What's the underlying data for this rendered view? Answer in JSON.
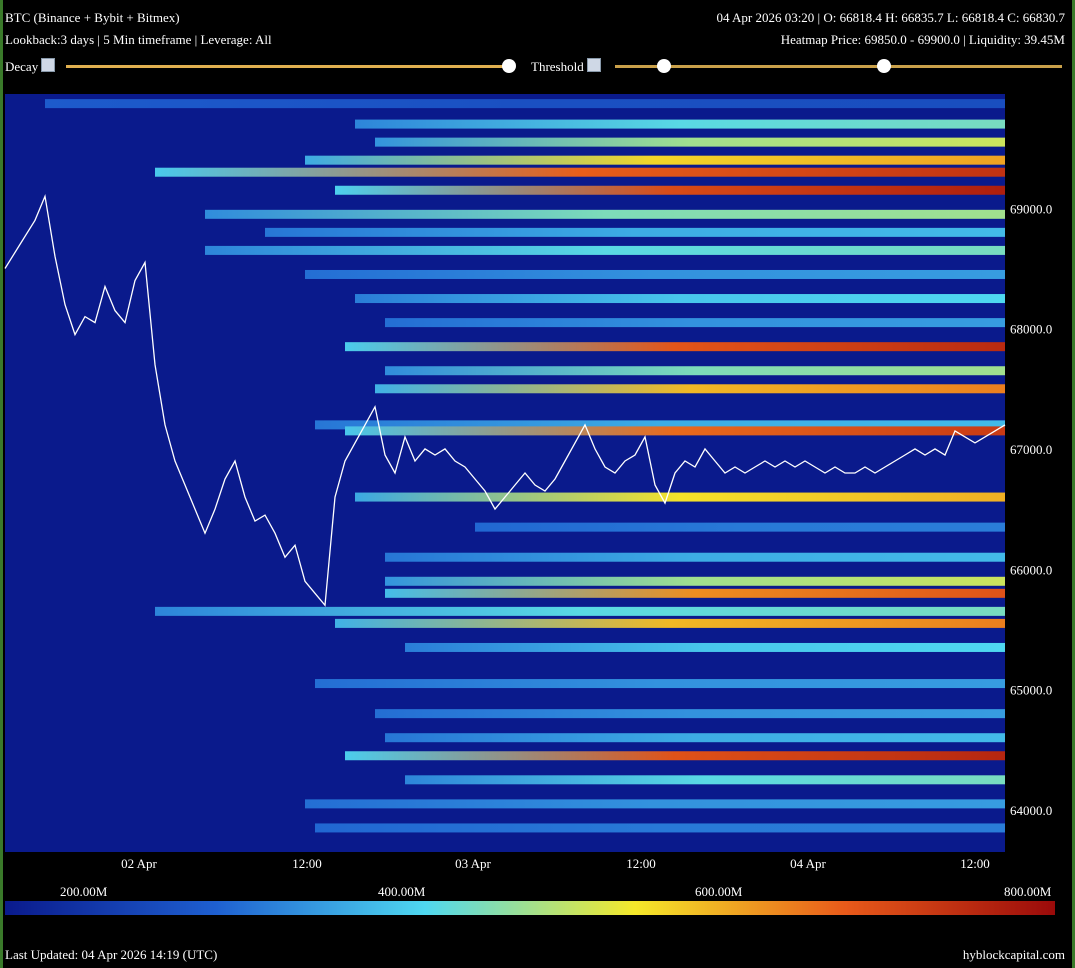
{
  "header": {
    "title": "BTC (Binance + Bybit + Bitmex)",
    "subtitle": "Lookback:3 days | 5 Min timeframe | Leverage: All",
    "ohlc": "04 Apr 2026 03:20 | O: 66818.4 H: 66835.7 L: 66818.4 C: 66830.7",
    "heatmap_info": "Heatmap Price: 69850.0 - 69900.0 | Liquidity: 39.45M"
  },
  "controls": {
    "decay_label": "Decay",
    "threshold_label": "Threshold"
  },
  "footer": {
    "last_updated": "Last Updated: 04 Apr 2026 14:19 (UTC)",
    "brand": "hyblockcapital.com"
  },
  "colors": {
    "background": "#000000",
    "heatmap_base": "#0a1a8c",
    "price_line": "#ffffff",
    "slider": "#e0b050",
    "scale": [
      "#0a1a8c",
      "#1e5fd0",
      "#4fd8f0",
      "#f5e82a",
      "#e85a1a",
      "#9a0a0a"
    ]
  },
  "chart_data": {
    "type": "heatmap",
    "y_ticks": [
      "69000.0",
      "68000.0",
      "67000.0",
      "66000.0",
      "65000.0",
      "64000.0"
    ],
    "x_ticks": [
      "02 Apr",
      "12:00",
      "03 Apr",
      "12:00",
      "04 Apr",
      "12:00"
    ],
    "colorbar_labels": [
      "200.00M",
      "400.00M",
      "600.00M",
      "800.00M"
    ],
    "ylim": [
      63650,
      69950
    ],
    "price_series": [
      [
        0,
        68500
      ],
      [
        1.5,
        68700
      ],
      [
        3,
        68900
      ],
      [
        4,
        69100
      ],
      [
        5,
        68600
      ],
      [
        6,
        68200
      ],
      [
        7,
        67950
      ],
      [
        8,
        68100
      ],
      [
        9,
        68050
      ],
      [
        10,
        68350
      ],
      [
        11,
        68150
      ],
      [
        12,
        68050
      ],
      [
        13,
        68400
      ],
      [
        14,
        68550
      ],
      [
        15,
        67700
      ],
      [
        16,
        67200
      ],
      [
        17,
        66900
      ],
      [
        18,
        66700
      ],
      [
        19,
        66500
      ],
      [
        20,
        66300
      ],
      [
        21,
        66500
      ],
      [
        22,
        66750
      ],
      [
        23,
        66900
      ],
      [
        24,
        66600
      ],
      [
        25,
        66400
      ],
      [
        26,
        66450
      ],
      [
        27,
        66300
      ],
      [
        28,
        66100
      ],
      [
        29,
        66200
      ],
      [
        30,
        65900
      ],
      [
        31,
        65800
      ],
      [
        32,
        65700
      ],
      [
        33,
        66600
      ],
      [
        34,
        66900
      ],
      [
        35,
        67050
      ],
      [
        36,
        67200
      ],
      [
        37,
        67350
      ],
      [
        38,
        66950
      ],
      [
        39,
        66800
      ],
      [
        40,
        67100
      ],
      [
        41,
        66900
      ],
      [
        42,
        67000
      ],
      [
        43,
        66950
      ],
      [
        44,
        67000
      ],
      [
        45,
        66900
      ],
      [
        46,
        66850
      ],
      [
        47,
        66750
      ],
      [
        48,
        66650
      ],
      [
        49,
        66500
      ],
      [
        50,
        66600
      ],
      [
        51,
        66700
      ],
      [
        52,
        66800
      ],
      [
        53,
        66700
      ],
      [
        54,
        66650
      ],
      [
        55,
        66750
      ],
      [
        56,
        66900
      ],
      [
        57,
        67050
      ],
      [
        58,
        67200
      ],
      [
        59,
        67000
      ],
      [
        60,
        66850
      ],
      [
        61,
        66800
      ],
      [
        62,
        66900
      ],
      [
        63,
        66950
      ],
      [
        64,
        67100
      ],
      [
        65,
        66700
      ],
      [
        66,
        66550
      ],
      [
        67,
        66800
      ],
      [
        68,
        66900
      ],
      [
        69,
        66850
      ],
      [
        70,
        67000
      ],
      [
        71,
        66900
      ],
      [
        72,
        66800
      ],
      [
        73,
        66850
      ],
      [
        74,
        66800
      ],
      [
        75,
        66850
      ],
      [
        76,
        66900
      ],
      [
        77,
        66850
      ],
      [
        78,
        66900
      ],
      [
        79,
        66850
      ],
      [
        80,
        66900
      ],
      [
        81,
        66850
      ],
      [
        82,
        66800
      ],
      [
        83,
        66850
      ],
      [
        84,
        66800
      ],
      [
        85,
        66800
      ],
      [
        86,
        66850
      ],
      [
        87,
        66800
      ],
      [
        88,
        66850
      ],
      [
        89,
        66900
      ],
      [
        90,
        66950
      ],
      [
        91,
        67000
      ],
      [
        92,
        66950
      ],
      [
        93,
        67000
      ],
      [
        94,
        66950
      ],
      [
        95,
        67150
      ],
      [
        96,
        67100
      ],
      [
        97,
        67050
      ],
      [
        98,
        67100
      ],
      [
        99,
        67150
      ],
      [
        100,
        67200
      ]
    ],
    "liquidity_bands": [
      {
        "price": 69870,
        "start": 4,
        "intensity": 0.15
      },
      {
        "price": 69700,
        "start": 35,
        "intensity": 0.45
      },
      {
        "price": 69550,
        "start": 37,
        "intensity": 0.55
      },
      {
        "price": 69400,
        "start": 30,
        "intensity": 0.7
      },
      {
        "price": 69300,
        "start": 15,
        "intensity": 0.9
      },
      {
        "price": 69150,
        "start": 33,
        "intensity": 0.95
      },
      {
        "price": 68950,
        "start": 20,
        "intensity": 0.5
      },
      {
        "price": 68800,
        "start": 26,
        "intensity": 0.35
      },
      {
        "price": 68650,
        "start": 20,
        "intensity": 0.45
      },
      {
        "price": 68450,
        "start": 30,
        "intensity": 0.3
      },
      {
        "price": 68250,
        "start": 35,
        "intensity": 0.4
      },
      {
        "price": 68050,
        "start": 38,
        "intensity": 0.3
      },
      {
        "price": 67850,
        "start": 34,
        "intensity": 0.92
      },
      {
        "price": 67650,
        "start": 38,
        "intensity": 0.5
      },
      {
        "price": 67500,
        "start": 37,
        "intensity": 0.75
      },
      {
        "price": 67200,
        "start": 31,
        "intensity": 0.35
      },
      {
        "price": 67150,
        "start": 34,
        "intensity": 0.88
      },
      {
        "price": 66600,
        "start": 35,
        "intensity": 0.68
      },
      {
        "price": 66350,
        "start": 47,
        "intensity": 0.25
      },
      {
        "price": 66100,
        "start": 38,
        "intensity": 0.35
      },
      {
        "price": 65900,
        "start": 38,
        "intensity": 0.55
      },
      {
        "price": 65800,
        "start": 38,
        "intensity": 0.82
      },
      {
        "price": 65650,
        "start": 15,
        "intensity": 0.45
      },
      {
        "price": 65550,
        "start": 33,
        "intensity": 0.75
      },
      {
        "price": 65350,
        "start": 40,
        "intensity": 0.4
      },
      {
        "price": 65050,
        "start": 31,
        "intensity": 0.3
      },
      {
        "price": 64800,
        "start": 37,
        "intensity": 0.3
      },
      {
        "price": 64600,
        "start": 38,
        "intensity": 0.35
      },
      {
        "price": 64450,
        "start": 34,
        "intensity": 0.93
      },
      {
        "price": 64250,
        "start": 40,
        "intensity": 0.45
      },
      {
        "price": 64050,
        "start": 30,
        "intensity": 0.3
      },
      {
        "price": 63850,
        "start": 31,
        "intensity": 0.25
      }
    ]
  }
}
